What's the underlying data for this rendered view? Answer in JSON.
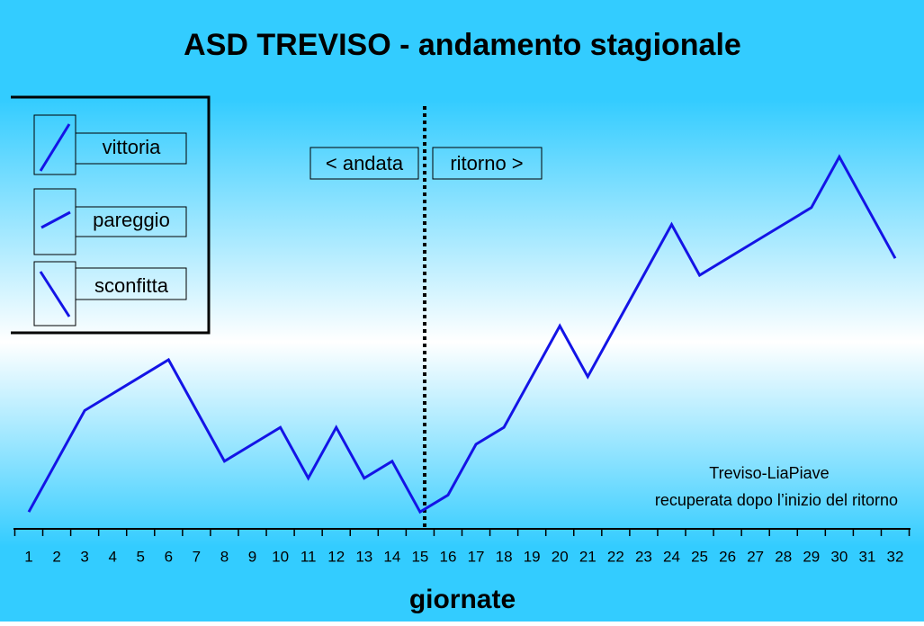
{
  "chart_data": {
    "type": "line",
    "title": "ASD TREVISO - andamento stagionale",
    "x_label": "giornate",
    "categories": [
      "1",
      "2",
      "3",
      "4",
      "5",
      "6",
      "7",
      "8",
      "9",
      "10",
      "11",
      "12",
      "13",
      "14",
      "15",
      "16",
      "17",
      "18",
      "19",
      "20",
      "21",
      "22",
      "23",
      "24",
      "25",
      "26",
      "27",
      "28",
      "29",
      "30",
      "31",
      "32"
    ],
    "values": [
      0,
      3,
      6,
      7,
      8,
      9,
      6,
      3,
      4,
      5,
      2,
      5,
      2,
      3,
      0,
      1,
      4,
      5,
      8,
      11,
      8,
      11,
      14,
      17,
      14,
      15,
      16,
      17,
      18,
      21,
      18,
      15
    ],
    "color": "#1414e6",
    "ylim": [
      -1,
      24
    ],
    "legend": [
      "vittoria",
      "pareggio",
      "sconfitta"
    ],
    "annotations": {
      "andata": "< andata",
      "ritorno": "ritorno >",
      "note_1": "Treviso-LiaPiave",
      "note_2": "recuperata dopo l’inizio del ritorno"
    }
  }
}
